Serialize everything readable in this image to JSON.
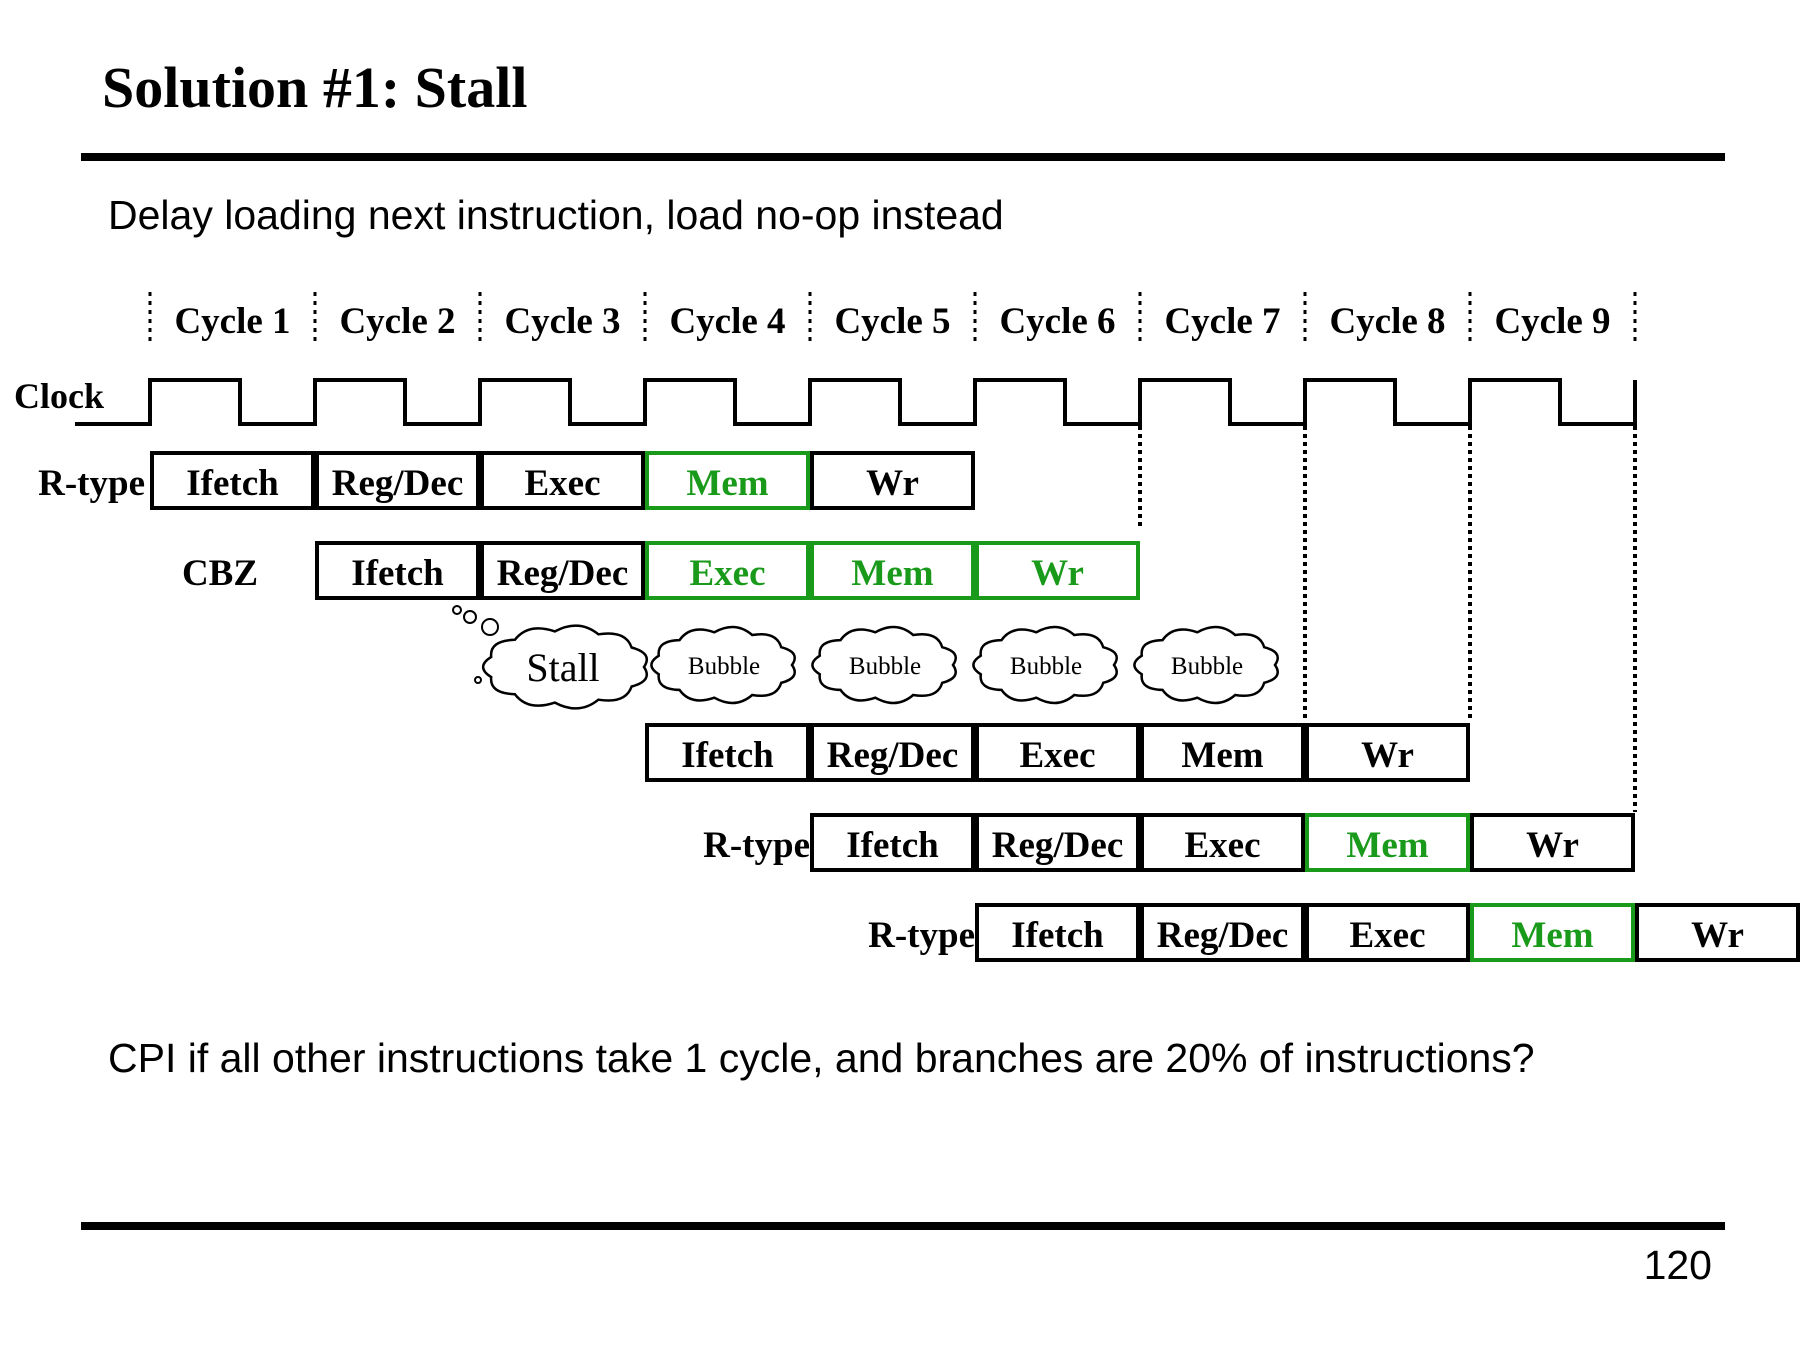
{
  "slide": {
    "title": "Solution #1: Stall",
    "subtitle": "Delay loading next instruction, load no-op instead",
    "question": "CPI if all other instructions take 1 cycle, and branches are 20% of instructions?",
    "page_number": "120"
  },
  "colors": {
    "stage_normal": "#000000",
    "stage_highlight": "#1a9a1a"
  },
  "cycles": [
    "Cycle 1",
    "Cycle 2",
    "Cycle 3",
    "Cycle 4",
    "Cycle 5",
    "Cycle 6",
    "Cycle 7",
    "Cycle 8",
    "Cycle 9"
  ],
  "clock_label": "Clock",
  "stall": {
    "label": "Stall",
    "bubbles": [
      "Bubble",
      "Bubble",
      "Bubble",
      "Bubble"
    ]
  },
  "instructions": [
    {
      "label": "R-type",
      "start_cycle": 1,
      "stages": [
        {
          "name": "Ifetch",
          "highlight": false
        },
        {
          "name": "Reg/Dec",
          "highlight": false
        },
        {
          "name": "Exec",
          "highlight": false
        },
        {
          "name": "Mem",
          "highlight": true
        },
        {
          "name": "Wr",
          "highlight": false
        }
      ]
    },
    {
      "label": "CBZ",
      "start_cycle": 2,
      "stages": [
        {
          "name": "Ifetch",
          "highlight": false
        },
        {
          "name": "Reg/Dec",
          "highlight": false
        },
        {
          "name": "Exec",
          "highlight": true
        },
        {
          "name": "Mem",
          "highlight": true
        },
        {
          "name": "Wr",
          "highlight": true
        }
      ]
    },
    {
      "label": "",
      "start_cycle": 4,
      "stages": [
        {
          "name": "Ifetch",
          "highlight": false
        },
        {
          "name": "Reg/Dec",
          "highlight": false
        },
        {
          "name": "Exec",
          "highlight": false
        },
        {
          "name": "Mem",
          "highlight": false
        },
        {
          "name": "Wr",
          "highlight": false
        }
      ]
    },
    {
      "label": "R-type",
      "start_cycle": 5,
      "stages": [
        {
          "name": "Ifetch",
          "highlight": false
        },
        {
          "name": "Reg/Dec",
          "highlight": false
        },
        {
          "name": "Exec",
          "highlight": false
        },
        {
          "name": "Mem",
          "highlight": true
        },
        {
          "name": "Wr",
          "highlight": false
        }
      ]
    },
    {
      "label": "R-type",
      "start_cycle": 6,
      "stages": [
        {
          "name": "Ifetch",
          "highlight": false
        },
        {
          "name": "Reg/Dec",
          "highlight": false
        },
        {
          "name": "Exec",
          "highlight": false
        },
        {
          "name": "Mem",
          "highlight": true
        },
        {
          "name": "Wr",
          "highlight": false
        }
      ]
    }
  ]
}
